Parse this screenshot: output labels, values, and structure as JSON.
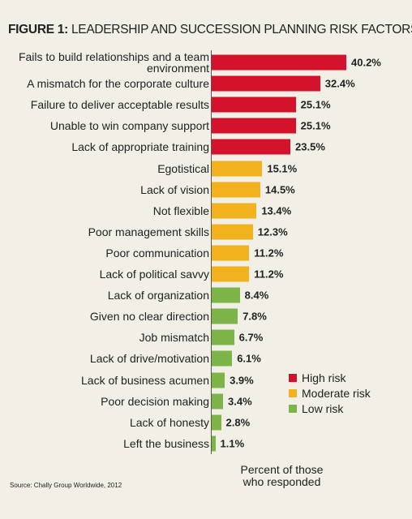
{
  "chart_data": {
    "type": "bar",
    "orientation": "horizontal",
    "figure_label": "FIGURE 1:",
    "title": "LEADERSHIP AND SUCCESSION PLANNING RISK FACTORS",
    "categories": [
      "Fails to build relationships and a team environment",
      "A mismatch for the corporate culture",
      "Failure to deliver acceptable results",
      "Unable to win company support",
      "Lack of appropriate training",
      "Egotistical",
      "Lack of vision",
      "Not flexible",
      "Poor management skills",
      "Poor communication",
      "Lack of political savvy",
      "Lack of organization",
      "Given no clear direction",
      "Job mismatch",
      "Lack of drive/motivation",
      "Lack of business acumen",
      "Poor decision making",
      "Lack of honesty",
      "Left the business"
    ],
    "values": [
      40.2,
      32.4,
      25.1,
      25.1,
      23.5,
      15.1,
      14.5,
      13.4,
      12.3,
      11.2,
      11.2,
      8.4,
      7.8,
      6.7,
      6.1,
      3.9,
      3.4,
      2.8,
      1.1
    ],
    "value_labels": [
      "40.2%",
      "32.4%",
      "25.1%",
      "25.1%",
      "23.5%",
      "15.1%",
      "14.5%",
      "13.4%",
      "12.3%",
      "11.2%",
      "11.2%",
      "8.4%",
      "7.8%",
      "6.7%",
      "6.1%",
      "3.9%",
      "3.4%",
      "2.8%",
      "1.1%"
    ],
    "colors": [
      "#d5122b",
      "#d5122b",
      "#d5122b",
      "#d5122b",
      "#d5122b",
      "#f1b21e",
      "#f1b21e",
      "#f1b21e",
      "#f1b21e",
      "#f1b21e",
      "#f1b21e",
      "#7cb447",
      "#7cb447",
      "#7cb447",
      "#7cb447",
      "#7cb447",
      "#7cb447",
      "#7cb447",
      "#7cb447"
    ],
    "legend": [
      {
        "name": "High risk",
        "color": "#d5122b"
      },
      {
        "name": "Moderate risk",
        "color": "#f1b21e"
      },
      {
        "name": "Low risk",
        "color": "#7cb447"
      }
    ],
    "xlabel": "Percent of those who responded",
    "source": "Source: Chally Group Worldwide, 2012"
  }
}
